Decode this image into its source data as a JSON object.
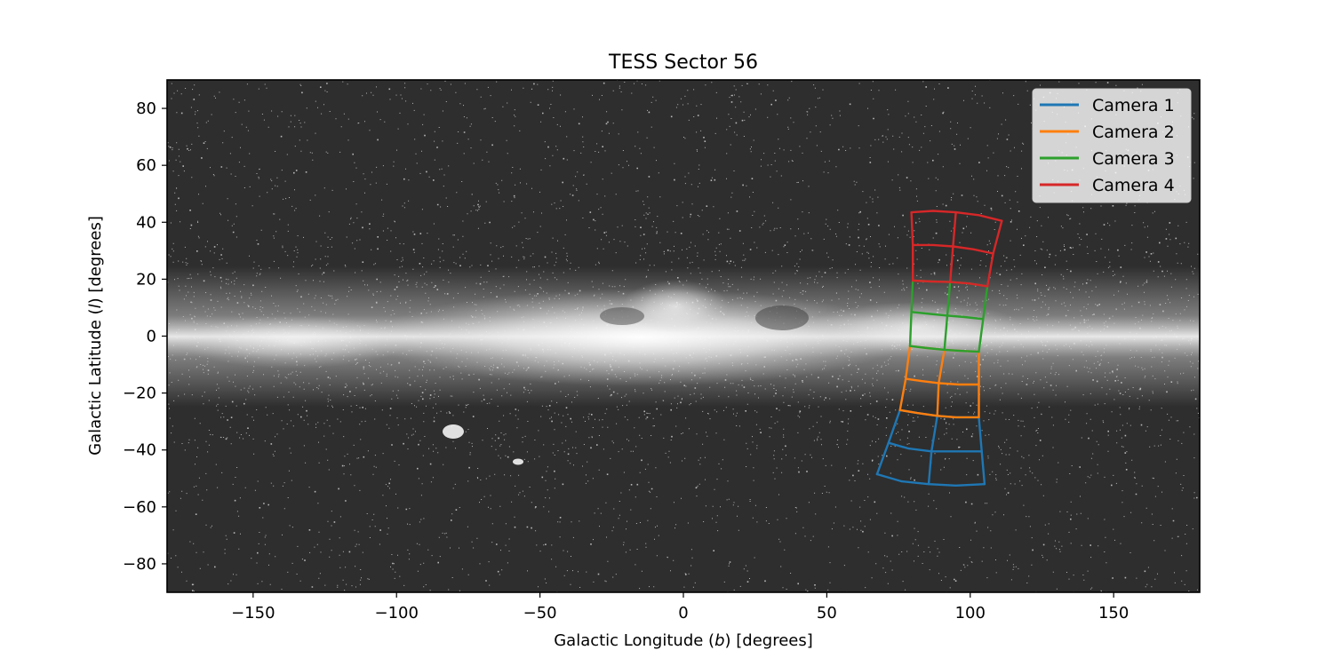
{
  "chart_data": {
    "type": "line",
    "title": "TESS Sector 56",
    "xlabel": {
      "prefix": "Galactic Longitude (",
      "symbol": "b",
      "suffix": ") [degrees]"
    },
    "ylabel": {
      "prefix": "Galactic Latitude (",
      "symbol": "l",
      "suffix": ") [degrees]"
    },
    "xlim": [
      -180,
      180
    ],
    "ylim": [
      -90,
      90
    ],
    "xticks": [
      -150,
      -100,
      -50,
      0,
      50,
      100,
      150
    ],
    "yticks": [
      -80,
      -60,
      -40,
      -20,
      0,
      20,
      40,
      60,
      80
    ],
    "grid": false,
    "legend_position": "top-right",
    "background": "all-sky Milky Way star map (grayscale)",
    "series": [
      {
        "name": "Camera 1",
        "color": "#1f77b4",
        "polylines": [
          [
            [
              67.5,
              -48.5
            ],
            [
              76,
              -51
            ],
            [
              85.5,
              -52
            ],
            [
              95,
              -52.5
            ],
            [
              105,
              -52
            ]
          ],
          [
            [
              71.5,
              -37.5
            ],
            [
              78.5,
              -39.5
            ],
            [
              86.5,
              -40.5
            ],
            [
              95,
              -40.5
            ],
            [
              104,
              -40.5
            ]
          ],
          [
            [
              75.5,
              -26
            ],
            [
              81.5,
              -27
            ],
            [
              88.5,
              -28
            ],
            [
              95,
              -28.5
            ],
            [
              103,
              -28.5
            ]
          ],
          [
            [
              67.5,
              -48.5
            ],
            [
              71.5,
              -37.5
            ],
            [
              75.5,
              -26
            ]
          ],
          [
            [
              85.5,
              -52
            ],
            [
              86.5,
              -40.5
            ],
            [
              88.5,
              -28
            ]
          ],
          [
            [
              105,
              -52
            ],
            [
              104,
              -40.5
            ],
            [
              103,
              -28.5
            ]
          ]
        ]
      },
      {
        "name": "Camera 2",
        "color": "#ff7f0e",
        "polylines": [
          [
            [
              75.5,
              -26
            ],
            [
              81.5,
              -27
            ],
            [
              88.5,
              -28
            ],
            [
              95,
              -28.5
            ],
            [
              103,
              -28.5
            ]
          ],
          [
            [
              77.5,
              -15
            ],
            [
              83,
              -15.8
            ],
            [
              89,
              -16.5
            ],
            [
              96,
              -17
            ],
            [
              103,
              -17
            ]
          ],
          [
            [
              79,
              -3.5
            ],
            [
              85,
              -4.2
            ],
            [
              91,
              -4.8
            ],
            [
              97,
              -5.2
            ],
            [
              103,
              -5.5
            ]
          ],
          [
            [
              75.5,
              -26
            ],
            [
              77.5,
              -15
            ],
            [
              79,
              -3.5
            ]
          ],
          [
            [
              88.5,
              -28
            ],
            [
              89,
              -16.5
            ],
            [
              91,
              -4.8
            ]
          ],
          [
            [
              103,
              -28.5
            ],
            [
              103,
              -17
            ],
            [
              103,
              -5.5
            ]
          ]
        ]
      },
      {
        "name": "Camera 3",
        "color": "#2ca02c",
        "polylines": [
          [
            [
              79,
              -3.5
            ],
            [
              85,
              -4.2
            ],
            [
              91,
              -4.8
            ],
            [
              97,
              -5.2
            ],
            [
              103,
              -5.5
            ]
          ],
          [
            [
              79.5,
              8.5
            ],
            [
              86,
              7.8
            ],
            [
              92,
              7.2
            ],
            [
              98,
              6.7
            ],
            [
              104.5,
              6
            ]
          ],
          [
            [
              80,
              19.5
            ],
            [
              86.5,
              19.2
            ],
            [
              93,
              19
            ],
            [
              99.5,
              18.5
            ],
            [
              106,
              17.5
            ]
          ],
          [
            [
              79,
              -3.5
            ],
            [
              79.5,
              8.5
            ],
            [
              80,
              19.5
            ]
          ],
          [
            [
              91,
              -4.8
            ],
            [
              92,
              7.2
            ],
            [
              93,
              19
            ]
          ],
          [
            [
              103,
              -5.5
            ],
            [
              104.5,
              6
            ],
            [
              106,
              17.5
            ]
          ]
        ]
      },
      {
        "name": "Camera 4",
        "color": "#d62728",
        "polylines": [
          [
            [
              80,
              19.5
            ],
            [
              86.5,
              19.2
            ],
            [
              93,
              19
            ],
            [
              99.5,
              18.5
            ],
            [
              106,
              17.5
            ]
          ],
          [
            [
              80,
              32
            ],
            [
              87,
              32
            ],
            [
              94,
              31.5
            ],
            [
              101,
              30.5
            ],
            [
              108,
              29
            ]
          ],
          [
            [
              79.5,
              43.5
            ],
            [
              87,
              44
            ],
            [
              95,
              43.5
            ],
            [
              103,
              42.5
            ],
            [
              111,
              40.5
            ]
          ],
          [
            [
              80,
              19.5
            ],
            [
              80,
              32
            ],
            [
              79.5,
              43.5
            ]
          ],
          [
            [
              93,
              19
            ],
            [
              94,
              31.5
            ],
            [
              95,
              43.5
            ]
          ],
          [
            [
              106,
              17.5
            ],
            [
              108,
              29
            ],
            [
              111,
              40.5
            ]
          ]
        ]
      }
    ]
  }
}
